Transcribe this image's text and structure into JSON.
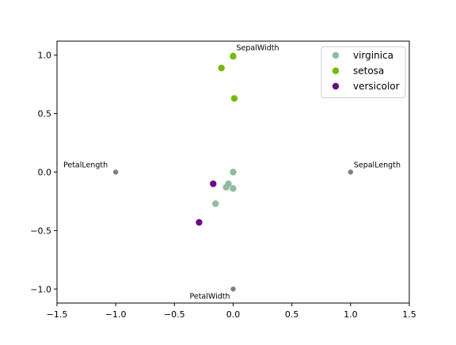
{
  "chart_data": {
    "type": "scatter",
    "title": "",
    "xlabel": "",
    "ylabel": "",
    "xlim": [
      -1.5,
      1.5
    ],
    "ylim": [
      -1.12,
      1.12
    ],
    "xticks": [
      -1.5,
      -1.0,
      -0.5,
      0.0,
      0.5,
      1.0,
      1.5
    ],
    "xtick_labels": [
      "−1.5",
      "−1.0",
      "−0.5",
      "0.0",
      "0.5",
      "1.0",
      "1.5"
    ],
    "yticks": [
      -1.0,
      -0.5,
      0.0,
      0.5,
      1.0
    ],
    "ytick_labels": [
      "−1.0",
      "−0.5",
      "0.0",
      "0.5",
      "1.0"
    ],
    "grid": false,
    "legend_position": "top-right",
    "anchors": {
      "color": "#808080",
      "points": [
        {
          "label": "SepalLength",
          "x": 1.0,
          "y": 0.0
        },
        {
          "label": "SepalWidth",
          "x": 0.0,
          "y": 1.0
        },
        {
          "label": "PetalLength",
          "x": -1.0,
          "y": 0.0
        },
        {
          "label": "PetalWidth",
          "x": 0.0,
          "y": -1.0
        }
      ]
    },
    "series": [
      {
        "name": "virginica",
        "color": "#8fbc9f",
        "points": [
          {
            "x": 0.0,
            "y": 0.0
          },
          {
            "x": -0.04,
            "y": -0.1
          },
          {
            "x": -0.06,
            "y": -0.13
          },
          {
            "x": 0.0,
            "y": -0.14
          },
          {
            "x": -0.15,
            "y": -0.27
          }
        ]
      },
      {
        "name": "setosa",
        "color": "#76b900",
        "points": [
          {
            "x": -0.1,
            "y": 0.89
          },
          {
            "x": 0.01,
            "y": 0.63
          },
          {
            "x": 0.0,
            "y": 0.99
          }
        ]
      },
      {
        "name": "versicolor",
        "color": "#6a0d83",
        "points": [
          {
            "x": -0.17,
            "y": -0.1
          },
          {
            "x": -0.29,
            "y": -0.43
          }
        ]
      }
    ]
  }
}
